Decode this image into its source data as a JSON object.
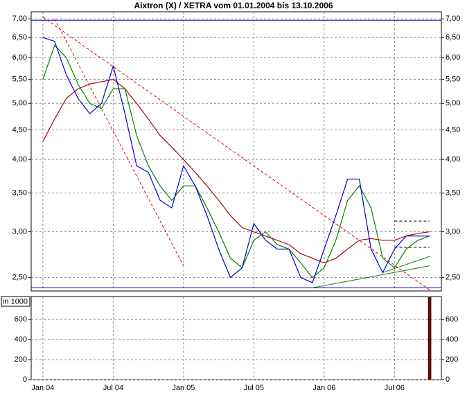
{
  "chart_data": [
    {
      "type": "line",
      "title": "Aixtron (X) / XETRA vom 01.01.2004 bis 13.10.2006",
      "log_scale": true,
      "grid": true,
      "x": [
        "2004-01",
        "2004-02",
        "2004-03",
        "2004-04",
        "2004-05",
        "2004-06",
        "2004-07",
        "2004-08",
        "2004-09",
        "2004-10",
        "2004-11",
        "2004-12",
        "2005-01",
        "2005-02",
        "2005-03",
        "2005-04",
        "2005-05",
        "2005-06",
        "2005-07",
        "2005-08",
        "2005-09",
        "2005-10",
        "2005-11",
        "2005-12",
        "2006-01",
        "2006-02",
        "2006-03",
        "2006-04",
        "2006-05",
        "2006-06",
        "2006-07",
        "2006-08",
        "2006-09",
        "2006-10"
      ],
      "series": [
        {
          "color": "#b00000",
          "values": [
            4.3,
            4.7,
            5.1,
            5.3,
            5.4,
            5.45,
            5.5,
            5.3,
            5.0,
            4.7,
            4.4,
            4.2,
            4.0,
            3.8,
            3.6,
            3.4,
            3.2,
            3.05,
            3.0,
            2.95,
            2.9,
            2.85,
            2.75,
            2.7,
            2.65,
            2.7,
            2.8,
            2.9,
            2.92,
            2.9,
            2.9,
            2.95,
            2.98,
            3.0
          ]
        },
        {
          "color": "#008000",
          "values": [
            5.5,
            6.3,
            6.0,
            5.4,
            5.0,
            4.9,
            5.3,
            5.3,
            4.4,
            3.9,
            3.6,
            3.4,
            3.6,
            3.6,
            3.3,
            3.0,
            2.7,
            2.6,
            2.9,
            3.0,
            2.85,
            2.8,
            2.65,
            2.5,
            2.6,
            2.9,
            3.4,
            3.6,
            3.3,
            2.7,
            2.6,
            2.8,
            2.9,
            2.95
          ]
        },
        {
          "color": "#0000cc",
          "values": [
            6.5,
            6.4,
            5.6,
            5.1,
            4.8,
            5.0,
            5.8,
            4.8,
            3.9,
            3.8,
            3.4,
            3.3,
            3.9,
            3.6,
            3.2,
            2.8,
            2.5,
            2.6,
            3.1,
            2.9,
            2.8,
            2.8,
            2.5,
            2.45,
            2.8,
            3.2,
            3.7,
            3.7,
            2.8,
            2.55,
            2.8,
            2.95,
            2.95,
            2.95
          ]
        }
      ],
      "trendlines": [
        {
          "color": "#0000cc",
          "dash": false,
          "x": [
            "2003-12",
            "2006-11"
          ],
          "values": [
            6.96,
            6.96
          ]
        },
        {
          "color": "#0000cc",
          "dash": false,
          "x": [
            "2003-12",
            "2006-11"
          ],
          "values": [
            2.4,
            2.4
          ]
        },
        {
          "color": "#e00000",
          "dash": true,
          "x": [
            "2004-01",
            "2006-10"
          ],
          "values": [
            7.05,
            2.38
          ]
        },
        {
          "color": "#e00000",
          "dash": true,
          "x": [
            "2004-02",
            "2005-01"
          ],
          "values": [
            7.0,
            2.62
          ]
        },
        {
          "color": "#008000",
          "dash": false,
          "x": [
            "2005-12",
            "2006-10"
          ],
          "values": [
            2.4,
            2.62
          ]
        },
        {
          "color": "#008000",
          "dash": false,
          "x": [
            "2006-06",
            "2006-10"
          ],
          "values": [
            2.55,
            2.72
          ]
        },
        {
          "color": "#000000",
          "dash": true,
          "x": [
            "2006-07",
            "2006-10"
          ],
          "values": [
            3.13,
            3.13
          ]
        },
        {
          "color": "#000000",
          "dash": true,
          "x": [
            "2006-07",
            "2006-10"
          ],
          "values": [
            2.82,
            2.82
          ]
        }
      ],
      "xlim": [
        "2003-12",
        "2006-11"
      ],
      "xticks": [
        {
          "value": "2004-01",
          "label": "Jan 04"
        },
        {
          "value": "2004-07",
          "label": "Jul 04"
        },
        {
          "value": "2005-01",
          "label": "Jan 05"
        },
        {
          "value": "2005-07",
          "label": "Jul 05"
        },
        {
          "value": "2006-01",
          "label": "Jan 06"
        },
        {
          "value": "2006-07",
          "label": "Jul 06"
        }
      ],
      "ylim": [
        2.37,
        7.2
      ],
      "yticks": [
        {
          "value": 2.5,
          "label": "2,50"
        },
        {
          "value": 3,
          "label": "3,00"
        },
        {
          "value": 3.5,
          "label": "3,50"
        },
        {
          "value": 4,
          "label": "4,00"
        },
        {
          "value": 4.5,
          "label": "4,50"
        },
        {
          "value": 5,
          "label": "5,00"
        },
        {
          "value": 5.5,
          "label": "5,50"
        },
        {
          "value": 6,
          "label": "6,00"
        },
        {
          "value": 6.5,
          "label": "6,50"
        },
        {
          "value": 7,
          "label": "7,00"
        }
      ]
    },
    {
      "type": "bar",
      "y_label": "in 1000",
      "grid": true,
      "color": "#7a0000",
      "x": [
        "2006-10"
      ],
      "values": [
        820
      ],
      "xlim": [
        "2003-12",
        "2006-11"
      ],
      "ylim": [
        0,
        830
      ],
      "yticks": [
        0,
        200,
        400,
        600
      ]
    }
  ]
}
